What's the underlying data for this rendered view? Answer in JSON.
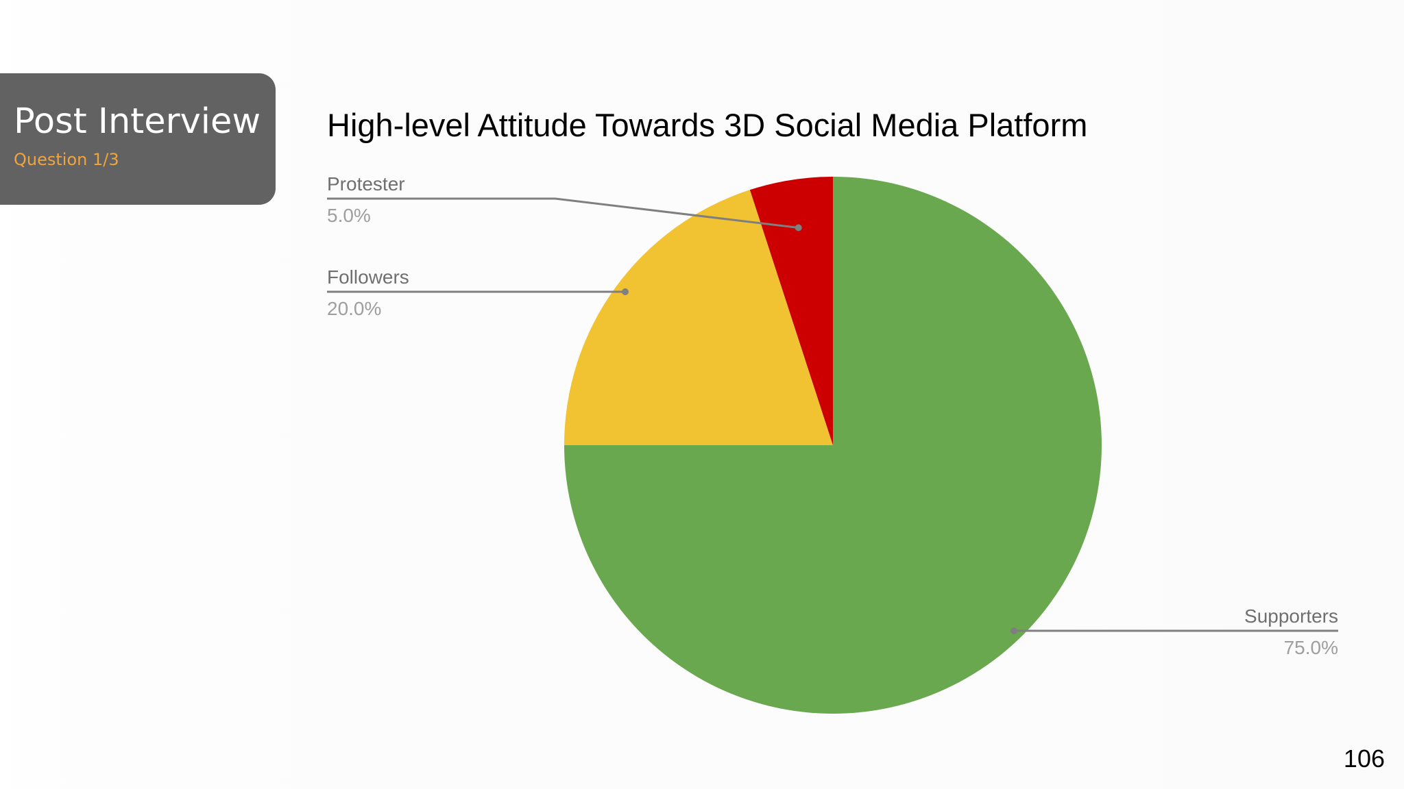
{
  "header": {
    "title": "Post Interview",
    "subtitle": "Question 1/3"
  },
  "page_number": "106",
  "chart_data": {
    "type": "pie",
    "title": "High-level Attitude Towards 3D Social Media Platform",
    "labels": [
      "Supporters",
      "Followers",
      "Protester"
    ],
    "values": [
      75.0,
      20.0,
      5.0
    ],
    "value_labels": [
      "75.0%",
      "20.0%",
      "5.0%"
    ],
    "colors": [
      "#6aa84f",
      "#f1c232",
      "#cc0000"
    ],
    "start_angle_deg": 0,
    "direction": "clockwise",
    "legend": "none",
    "label_style": "callout lines with name and percentage"
  },
  "colors": {
    "header_bg": "#636262",
    "header_title": "#ffffff",
    "header_subtitle": "#f0a43c",
    "leader_line": "#7f7f7f",
    "label_name": "#6f6f6f",
    "label_value": "#9e9e9e"
  }
}
